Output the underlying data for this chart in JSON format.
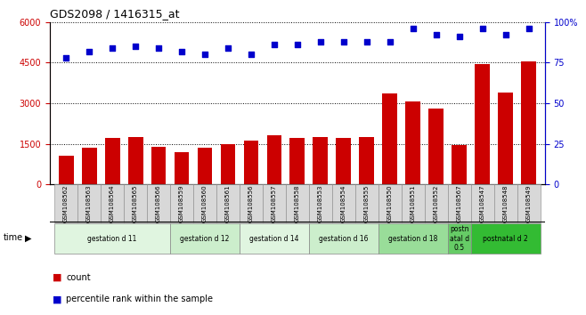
{
  "title": "GDS2098 / 1416315_at",
  "samples": [
    "GSM108562",
    "GSM108563",
    "GSM108564",
    "GSM108565",
    "GSM108566",
    "GSM108559",
    "GSM108560",
    "GSM108561",
    "GSM108556",
    "GSM108557",
    "GSM108558",
    "GSM108553",
    "GSM108554",
    "GSM108555",
    "GSM108550",
    "GSM108551",
    "GSM108552",
    "GSM108567",
    "GSM108547",
    "GSM108548",
    "GSM108549"
  ],
  "bar_values": [
    1050,
    1350,
    1700,
    1750,
    1400,
    1200,
    1350,
    1500,
    1600,
    1800,
    1700,
    1750,
    1700,
    1750,
    3350,
    3050,
    2800,
    1450,
    4450,
    3400,
    4550
  ],
  "dot_values": [
    78,
    82,
    84,
    85,
    84,
    82,
    80,
    84,
    80,
    86,
    86,
    88,
    88,
    88,
    88,
    96,
    92,
    91,
    96,
    92,
    96
  ],
  "bar_color": "#cc0000",
  "dot_color": "#0000cc",
  "ylim_left": [
    0,
    6000
  ],
  "ylim_right": [
    0,
    100
  ],
  "yticks_left": [
    0,
    1500,
    3000,
    4500,
    6000
  ],
  "yticks_right": [
    0,
    25,
    50,
    75,
    100
  ],
  "groups": [
    {
      "label": "gestation d 11",
      "start": 0,
      "end": 5,
      "color": "#e0f5e0"
    },
    {
      "label": "gestation d 12",
      "start": 5,
      "end": 8,
      "color": "#cceecc"
    },
    {
      "label": "gestation d 14",
      "start": 8,
      "end": 11,
      "color": "#e0f5e0"
    },
    {
      "label": "gestation d 16",
      "start": 11,
      "end": 14,
      "color": "#cceecc"
    },
    {
      "label": "gestation d 18",
      "start": 14,
      "end": 17,
      "color": "#99dd99"
    },
    {
      "label": "postn\natal d\n0.5",
      "start": 17,
      "end": 18,
      "color": "#66cc66"
    },
    {
      "label": "postnatal d 2",
      "start": 18,
      "end": 21,
      "color": "#33bb33"
    }
  ],
  "tick_label_color_left": "#cc0000",
  "tick_label_color_right": "#0000cc",
  "legend_count_color": "#cc0000",
  "legend_dot_color": "#0000cc"
}
